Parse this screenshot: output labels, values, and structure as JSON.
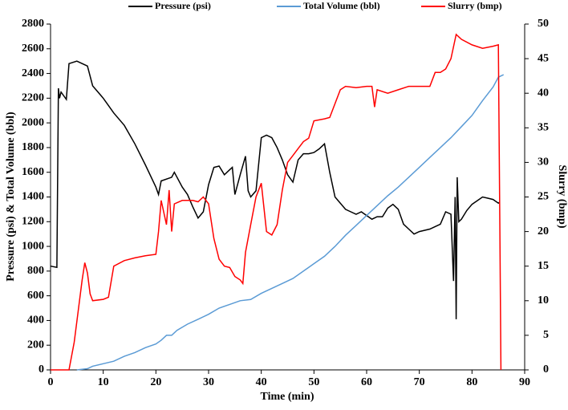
{
  "chart_data": {
    "type": "line",
    "xlabel": "Time (min)",
    "ylabel": "Pressure (psi) & Total Volume (bbl)",
    "y2label": "Slurry (bmp)",
    "xlim": [
      0,
      90
    ],
    "xticks": [
      0,
      10,
      20,
      30,
      40,
      50,
      60,
      70,
      80,
      90
    ],
    "ylim": [
      0,
      2800
    ],
    "yticks": [
      0,
      200,
      400,
      600,
      800,
      1000,
      1200,
      1400,
      1600,
      1800,
      2000,
      2200,
      2400,
      2600,
      2800
    ],
    "y2lim": [
      0,
      50
    ],
    "y2ticks": [
      0,
      5,
      10,
      15,
      20,
      25,
      30,
      35,
      40,
      45,
      50
    ],
    "grid": false,
    "legend": "top",
    "series": [
      {
        "name": "Pressure (psi)",
        "color": "#000000",
        "x": [
          0,
          1.2,
          1.5,
          1.7,
          2,
          3,
          3.5,
          5,
          7,
          8,
          10,
          12,
          14,
          16,
          18,
          20,
          20.5,
          21,
          23,
          23.5,
          25,
          26,
          27,
          28,
          29,
          30,
          31,
          32,
          33,
          34,
          34.5,
          35,
          36,
          37,
          37.5,
          38,
          39,
          40,
          41,
          42,
          43,
          44,
          45,
          46,
          47,
          48,
          49,
          50,
          51,
          52,
          53,
          54,
          55,
          56,
          57,
          58,
          59,
          60,
          61,
          62,
          63,
          64,
          65,
          66,
          67,
          68,
          69,
          70,
          72,
          73,
          74,
          75,
          76,
          76.5,
          76.8,
          77,
          77.2,
          77.5,
          78,
          79,
          80,
          81,
          82,
          83,
          84,
          85,
          85.3
        ],
        "values": [
          840,
          830,
          2280,
          2200,
          2250,
          2190,
          2480,
          2500,
          2460,
          2300,
          2200,
          2080,
          1980,
          1830,
          1660,
          1480,
          1420,
          1530,
          1560,
          1600,
          1480,
          1420,
          1320,
          1230,
          1280,
          1500,
          1640,
          1650,
          1580,
          1620,
          1640,
          1420,
          1580,
          1730,
          1450,
          1400,
          1450,
          1880,
          1900,
          1880,
          1800,
          1700,
          1580,
          1520,
          1700,
          1750,
          1750,
          1760,
          1790,
          1830,
          1600,
          1400,
          1350,
          1300,
          1280,
          1260,
          1280,
          1250,
          1220,
          1240,
          1240,
          1310,
          1340,
          1300,
          1180,
          1140,
          1100,
          1120,
          1140,
          1160,
          1180,
          1280,
          1260,
          720,
          1400,
          410,
          1560,
          1200,
          1220,
          1290,
          1340,
          1370,
          1400,
          1390,
          1380,
          1350,
          1360
        ]
      },
      {
        "name": "Total Volume (bbl)",
        "color": "#5b9bd5",
        "x": [
          5,
          6,
          7,
          8,
          10,
          12,
          14,
          16,
          18,
          20,
          21,
          22,
          23,
          24,
          26,
          28,
          30,
          32,
          34,
          36,
          38,
          40,
          42,
          44,
          46,
          48,
          50,
          52,
          54,
          56,
          58,
          60,
          62,
          64,
          66,
          68,
          70,
          72,
          74,
          76,
          78,
          80,
          82,
          84,
          85,
          86
        ],
        "values": [
          0,
          5,
          10,
          30,
          50,
          70,
          110,
          140,
          180,
          210,
          240,
          280,
          280,
          320,
          370,
          410,
          450,
          500,
          530,
          560,
          570,
          620,
          660,
          700,
          740,
          800,
          860,
          920,
          1000,
          1090,
          1170,
          1250,
          1330,
          1410,
          1480,
          1560,
          1640,
          1720,
          1800,
          1880,
          1970,
          2060,
          2180,
          2290,
          2370,
          2390
        ]
      },
      {
        "name": "Slurry (bmp)",
        "color": "#ff0000",
        "axis": "y2",
        "x": [
          0,
          3.5,
          4.5,
          5,
          6,
          6.5,
          7,
          7.5,
          8,
          10,
          11,
          12,
          14,
          16,
          18,
          20,
          20.5,
          21,
          22,
          22.5,
          23,
          23.5,
          25,
          27,
          28,
          29,
          30,
          31,
          32,
          33,
          34,
          35,
          36,
          36.5,
          37,
          38,
          38.5,
          39,
          40,
          41,
          42,
          43,
          44,
          45,
          46,
          47,
          48,
          49,
          50,
          52,
          53,
          54,
          55,
          56,
          58,
          60,
          61,
          61.5,
          62,
          64,
          66,
          68,
          70,
          72,
          73,
          74,
          75,
          76,
          77,
          78,
          80,
          82,
          84,
          85,
          85.3,
          85.5
        ],
        "values": [
          0,
          0,
          4,
          7,
          13,
          15.5,
          14,
          11,
          10,
          10.2,
          10.5,
          15,
          15.8,
          16.2,
          16.5,
          16.7,
          20,
          24.5,
          21,
          26,
          20,
          24,
          24.5,
          24.5,
          24.3,
          25,
          24,
          19,
          16,
          15,
          14.8,
          13.5,
          13,
          12.5,
          17,
          21,
          23,
          25,
          27,
          20,
          19.5,
          21,
          26,
          30,
          31,
          32,
          33,
          33.5,
          36,
          36.3,
          36.5,
          38.5,
          40.5,
          41,
          40.8,
          41,
          41,
          38,
          40.5,
          40,
          40.5,
          41,
          41,
          41,
          43,
          43,
          43.5,
          45,
          48.5,
          47.8,
          47,
          46.5,
          46.8,
          47,
          20,
          0
        ]
      }
    ]
  }
}
